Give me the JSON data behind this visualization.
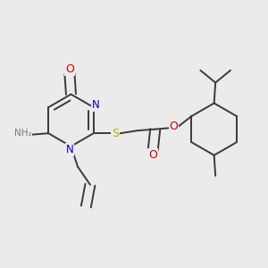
{
  "bg_color": "#ebebeb",
  "bond_color": "#3a3a3a",
  "atom_colors": {
    "N": "#0000cc",
    "O": "#cc0000",
    "S": "#bbaa00",
    "NH2_gray": "#7a7a7a"
  },
  "lw": 1.4,
  "dbg": 0.018
}
